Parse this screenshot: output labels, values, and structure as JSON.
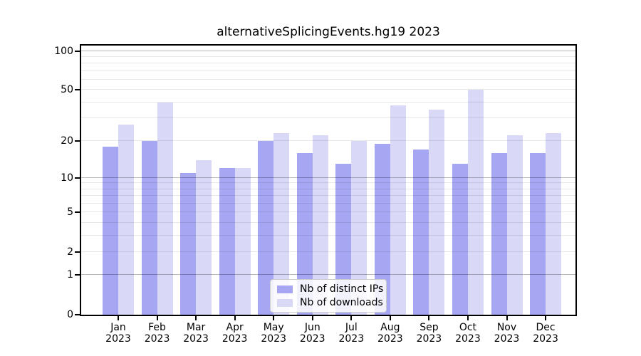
{
  "chart_data": {
    "type": "bar",
    "title": "alternativeSplicingEvents.hg19 2023",
    "categories": [
      "Jan",
      "Feb",
      "Mar",
      "Apr",
      "May",
      "Jun",
      "Jul",
      "Aug",
      "Sep",
      "Oct",
      "Nov",
      "Dec"
    ],
    "year_label": "2023",
    "series": [
      {
        "name": "Nb of distinct IPs",
        "color": "#a6a6f2",
        "values": [
          18,
          20,
          11,
          12,
          20,
          16,
          13,
          19,
          17,
          13,
          16,
          16
        ]
      },
      {
        "name": "Nb of downloads",
        "color": "#d9d9f7",
        "values": [
          27,
          40,
          14,
          12,
          23,
          22,
          20,
          38,
          35,
          50,
          22,
          23
        ]
      }
    ],
    "yscale": "log1p",
    "ylim": [
      0,
      110
    ],
    "yticks": [
      0,
      1,
      2,
      5,
      10,
      20,
      50,
      100
    ],
    "grid_minor": [
      2,
      3,
      4,
      5,
      6,
      7,
      8,
      9,
      20,
      30,
      40,
      50,
      60,
      70,
      80,
      90
    ],
    "grid_major": [
      1,
      10,
      100
    ],
    "grid_on": true,
    "legend_position": "lower-center-inside",
    "xlabel": "",
    "ylabel": ""
  },
  "colors": {
    "bar_distinct_ips": "#a6a6f2",
    "bar_downloads": "#d9d9f7",
    "grid_minor": "#e9e9e9",
    "grid_major": "#b7b7b7",
    "axis": "#000000",
    "text": "#000000",
    "legend_border": "#cccccc",
    "background": "#ffffff"
  }
}
